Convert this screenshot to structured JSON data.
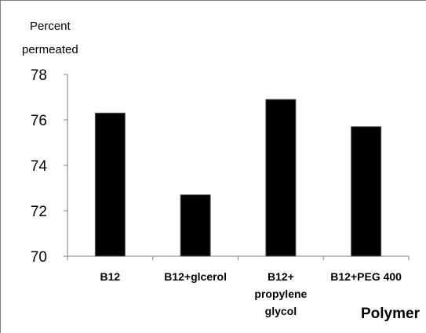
{
  "chart_data": {
    "type": "bar",
    "ylabel_lines": [
      "Percent",
      "permeated"
    ],
    "xlabel": "Polymer",
    "categories": [
      [
        "B12"
      ],
      [
        "B12+glcerol"
      ],
      [
        "B12+",
        "propylene",
        "glycol"
      ],
      [
        "B12+PEG 400"
      ]
    ],
    "values": [
      76.3,
      72.7,
      76.9,
      75.7
    ],
    "ylim": [
      70,
      78
    ],
    "yticks": [
      "70",
      "72",
      "74",
      "76",
      "78"
    ],
    "bar_color": "#000000",
    "grid": false
  }
}
